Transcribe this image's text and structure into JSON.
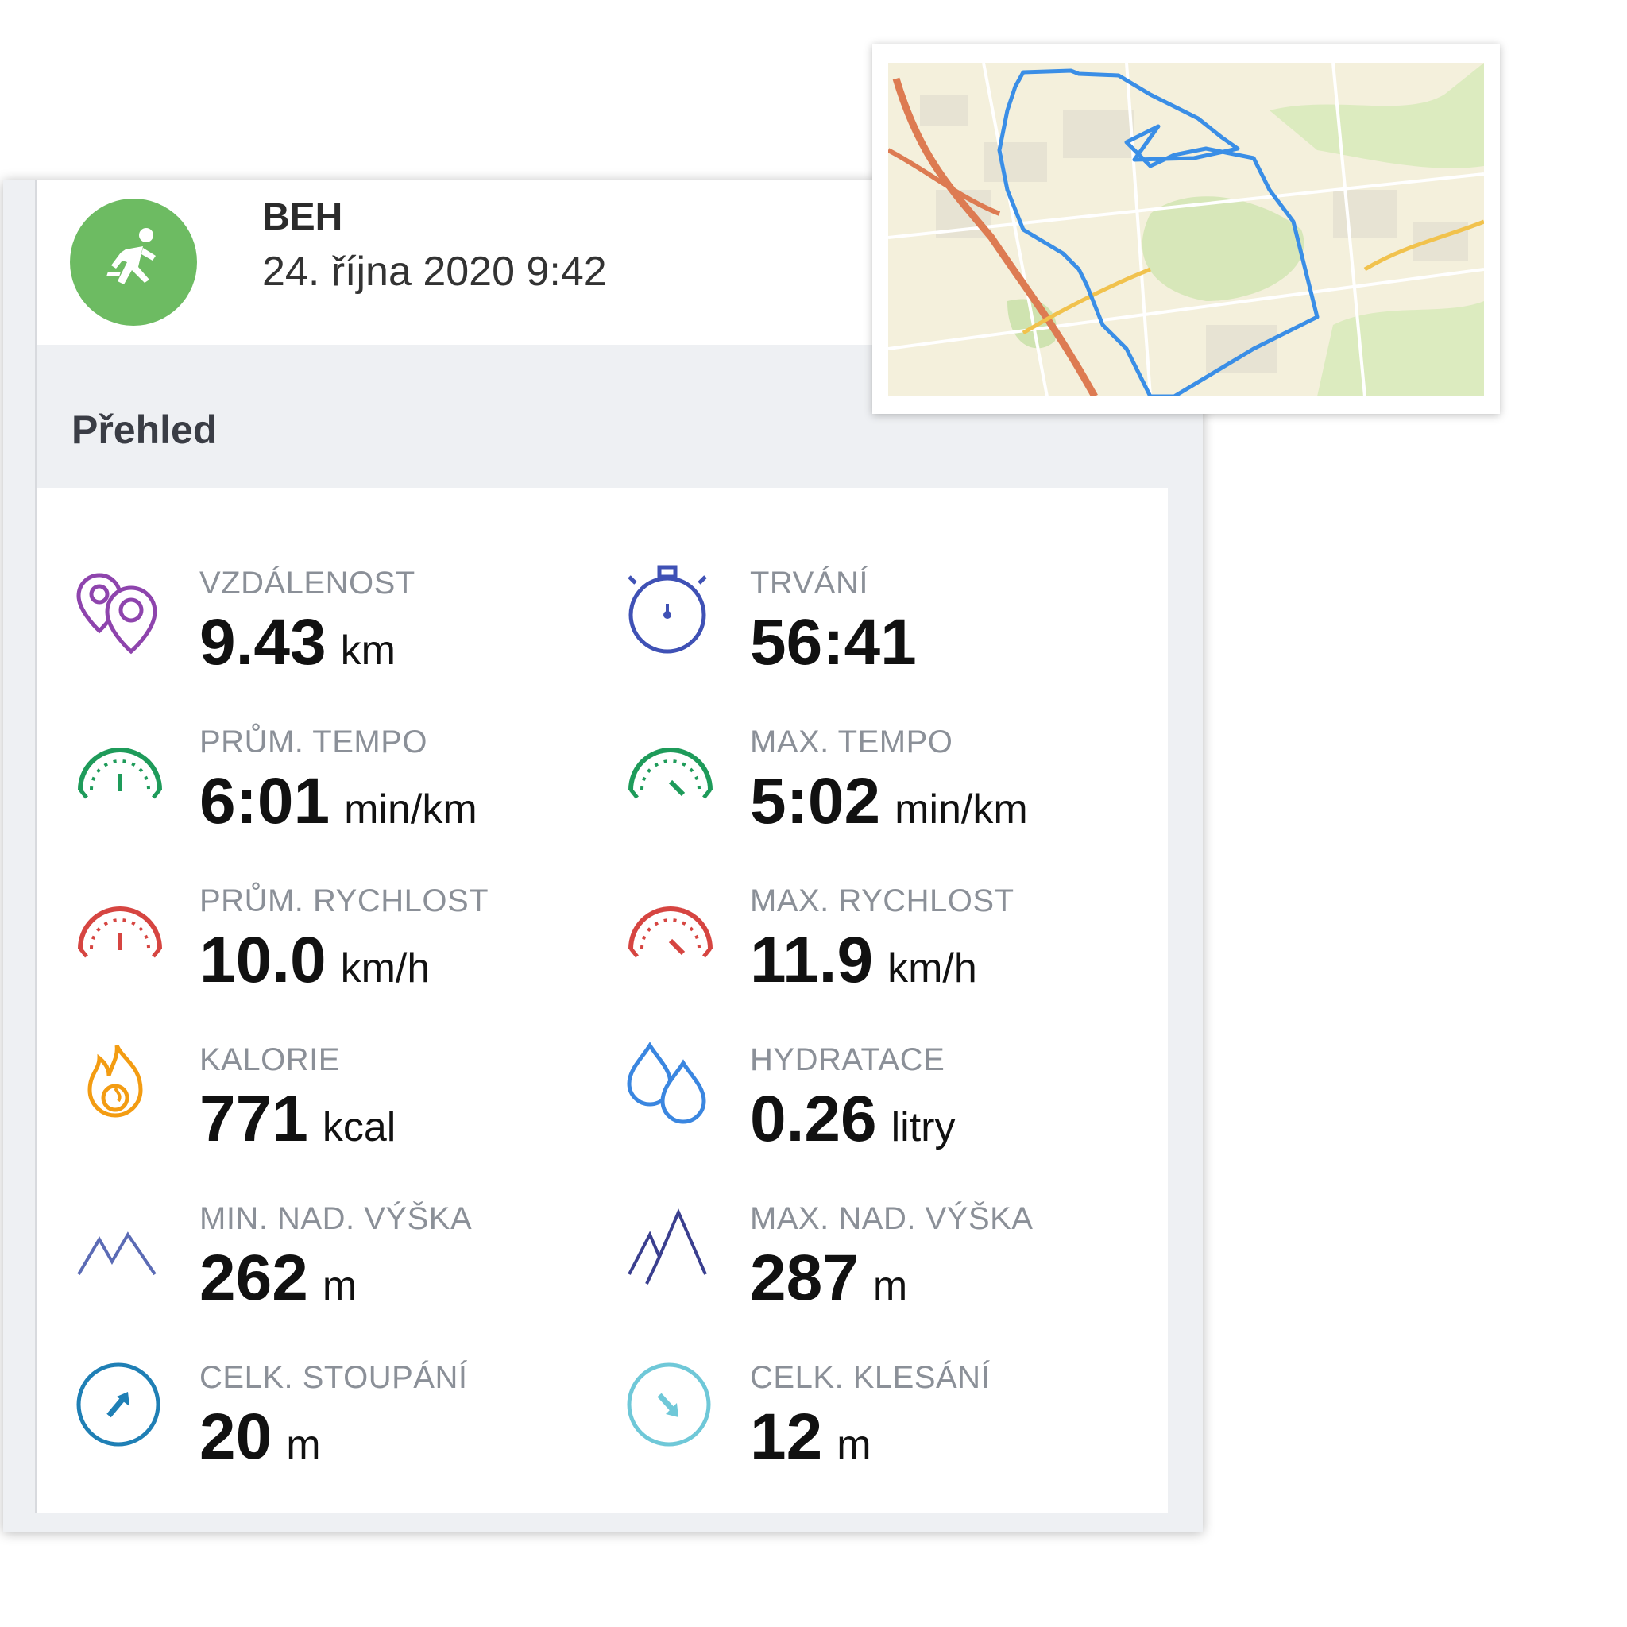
{
  "activity": {
    "title": "BEH",
    "date": "24. října 2020 9:42",
    "icon": "running-person-icon",
    "color": "#6dbb62"
  },
  "overview": {
    "title": "Přehled",
    "stats": [
      {
        "label": "VZDÁLENOST",
        "value": "9.43",
        "unit": "km",
        "icon": "location-pins-icon",
        "color": "#8e44ad"
      },
      {
        "label": "TRVÁNÍ",
        "value": "56:41",
        "unit": "",
        "icon": "stopwatch-icon",
        "color": "#3f51b5"
      },
      {
        "label": "PRŮM. TEMPO",
        "value": "6:01",
        "unit": "min/km",
        "icon": "gauge-icon",
        "color": "#1e9b5a"
      },
      {
        "label": "MAX. TEMPO",
        "value": "5:02",
        "unit": "min/km",
        "icon": "gauge-max-icon",
        "color": "#1e9b5a"
      },
      {
        "label": "PRŮM. RYCHLOST",
        "value": "10.0",
        "unit": "km/h",
        "icon": "speedometer-icon",
        "color": "#d64541"
      },
      {
        "label": "MAX. RYCHLOST",
        "value": "11.9",
        "unit": "km/h",
        "icon": "speedometer-max-icon",
        "color": "#d64541"
      },
      {
        "label": "KALORIE",
        "value": "771",
        "unit": "kcal",
        "icon": "flame-icon",
        "color": "#f39c12"
      },
      {
        "label": "HYDRATACE",
        "value": "0.26",
        "unit": "litry",
        "icon": "water-drops-icon",
        "color": "#3a86e0"
      },
      {
        "label": "MIN. NAD. VÝŠKA",
        "value": "262",
        "unit": "m",
        "icon": "mountains-low-icon",
        "color": "#5b6bb5"
      },
      {
        "label": "MAX. NAD. VÝŠKA",
        "value": "287",
        "unit": "m",
        "icon": "mountains-high-icon",
        "color": "#3a3f8f"
      },
      {
        "label": "CELK. STOUPÁNÍ",
        "value": "20",
        "unit": "m",
        "icon": "ascent-arrow-icon",
        "color": "#1f7fb5"
      },
      {
        "label": "CELK. KLESÁNÍ",
        "value": "12",
        "unit": "m",
        "icon": "descent-arrow-icon",
        "color": "#6fc8d8"
      }
    ]
  },
  "map": {
    "icon": "route-map-thumbnail",
    "route_color": "#3a8ee6"
  }
}
